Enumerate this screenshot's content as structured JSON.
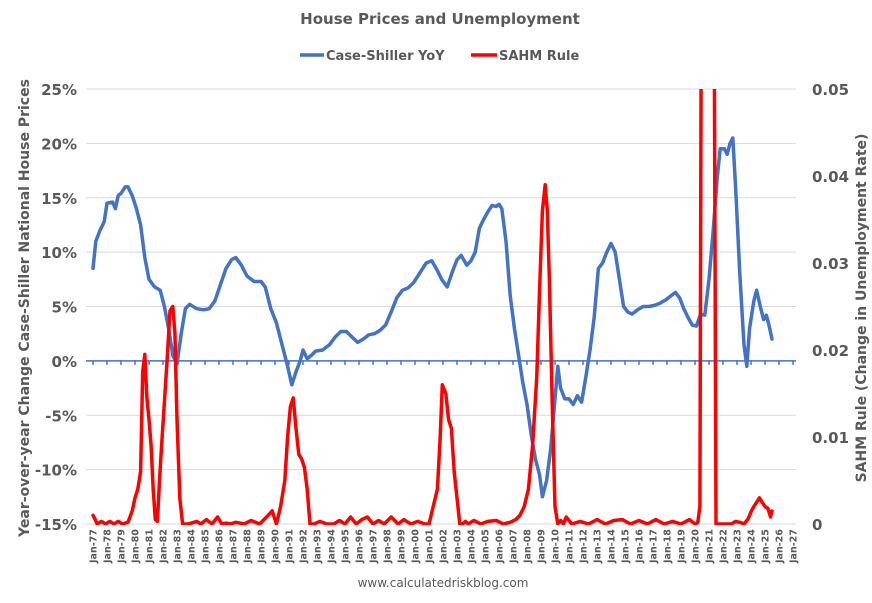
{
  "chart_data": {
    "type": "line",
    "title": "House Prices and Unemployment",
    "legend": [
      {
        "name": "Case-Shiller YoY",
        "color": "#4472C4",
        "axis": "left"
      },
      {
        "name": "SAHM Rule",
        "color": "#FF0000",
        "axis": "right"
      }
    ],
    "legend_position": "top",
    "ylabel_left": "Year-over-year Change Case-Shiller National House Prices",
    "ylabel_right": "SAHM Rule (Change in Unemployment Rate)",
    "ylim_left": [
      -0.15,
      0.25
    ],
    "ylim_right": [
      0,
      0.05
    ],
    "yticks_left": [
      "25%",
      "20%",
      "15%",
      "10%",
      "5%",
      "0%",
      "-5%",
      "-10%",
      "-15%"
    ],
    "yticks_right": [
      "0.05",
      "0.04",
      "0.03",
      "0.02",
      "0.01",
      "0"
    ],
    "xticks": [
      "Jan-77",
      "Jan-78",
      "Jan-79",
      "Jan-80",
      "Jan-81",
      "Jan-82",
      "Jan-83",
      "Jan-84",
      "Jan-85",
      "Jan-86",
      "Jan-87",
      "Jan-88",
      "Jan-89",
      "Jan-90",
      "Jan-91",
      "Jan-92",
      "Jan-93",
      "Jan-94",
      "Jan-95",
      "Jan-96",
      "Jan-97",
      "Jan-98",
      "Jan-99",
      "Jan-00",
      "Jan-01",
      "Jan-02",
      "Jan-03",
      "Jan-04",
      "Jan-05",
      "Jan-06",
      "Jan-07",
      "Jan-08",
      "Jan-09",
      "Jan-10",
      "Jan-11",
      "Jan-12",
      "Jan-13",
      "Jan-14",
      "Jan-15",
      "Jan-16",
      "Jan-17",
      "Jan-18",
      "Jan-19",
      "Jan-20",
      "Jan-21",
      "Jan-22",
      "Jan-23",
      "Jan-24",
      "Jan-25",
      "Jan-26",
      "Jan-27"
    ],
    "grid": true,
    "source": "www.calculatedriskblog.com",
    "series": [
      {
        "name": "Case-Shiller YoY",
        "unit": "percent",
        "x": [
          1977.0,
          1977.2,
          1977.5,
          1977.8,
          1978.0,
          1978.4,
          1978.6,
          1978.8,
          1979.0,
          1979.3,
          1979.5,
          1979.8,
          1980.1,
          1980.4,
          1980.7,
          1981.0,
          1981.4,
          1981.8,
          1982.1,
          1982.4,
          1982.7,
          1983.0,
          1983.3,
          1983.6,
          1983.9,
          1984.4,
          1984.9,
          1985.3,
          1985.7,
          1986.1,
          1986.5,
          1986.9,
          1987.2,
          1987.6,
          1988.0,
          1988.5,
          1989.0,
          1989.3,
          1989.7,
          1990.1,
          1990.5,
          1990.9,
          1991.2,
          1991.5,
          1991.8,
          1992.0,
          1992.3,
          1992.6,
          1992.9,
          1993.4,
          1993.9,
          1994.3,
          1994.7,
          1995.1,
          1995.5,
          1995.9,
          1996.3,
          1996.7,
          1997.1,
          1997.5,
          1997.9,
          1998.3,
          1998.7,
          1999.1,
          1999.5,
          1999.9,
          2000.3,
          2000.8,
          2001.2,
          2001.6,
          2001.9,
          2002.3,
          2002.7,
          2003.0,
          2003.3,
          2003.7,
          2004.0,
          2004.3,
          2004.6,
          2004.9,
          2005.2,
          2005.5,
          2005.8,
          2006.0,
          2006.2,
          2006.5,
          2006.8,
          2007.1,
          2007.4,
          2007.7,
          2008.0,
          2008.3,
          2008.6,
          2008.9,
          2009.1,
          2009.4,
          2009.7,
          2010.0,
          2010.2,
          2010.4,
          2010.7,
          2011.0,
          2011.3,
          2011.6,
          2011.9,
          2012.2,
          2012.5,
          2012.8,
          2013.1,
          2013.4,
          2013.7,
          2014.0,
          2014.3,
          2014.6,
          2014.9,
          2015.2,
          2015.5,
          2015.9,
          2016.3,
          2016.7,
          2017.1,
          2017.5,
          2017.9,
          2018.3,
          2018.6,
          2018.9,
          2019.2,
          2019.5,
          2019.8,
          2020.1,
          2020.4,
          2020.7,
          2021.0,
          2021.3,
          2021.6,
          2021.8,
          2022.1,
          2022.3,
          2022.5,
          2022.7,
          2022.9,
          2023.2,
          2023.5,
          2023.7,
          2023.9,
          2024.2,
          2024.4,
          2024.7,
          2024.9,
          2025.1,
          2025.3,
          2025.5
        ],
        "values": [
          8.5,
          11.0,
          12.0,
          12.8,
          14.5,
          14.6,
          14.0,
          15.2,
          15.4,
          16.0,
          16.0,
          15.2,
          14.0,
          12.5,
          9.5,
          7.5,
          6.8,
          6.5,
          5.0,
          3.0,
          0.5,
          -0.3,
          2.5,
          4.8,
          5.2,
          4.8,
          4.7,
          4.8,
          5.5,
          7.0,
          8.5,
          9.3,
          9.5,
          8.8,
          7.8,
          7.3,
          7.3,
          6.8,
          4.8,
          3.5,
          1.5,
          -0.5,
          -2.2,
          -1.0,
          0.0,
          1.0,
          0.2,
          0.5,
          0.9,
          1.0,
          1.5,
          2.2,
          2.7,
          2.7,
          2.2,
          1.7,
          2.0,
          2.4,
          2.5,
          2.8,
          3.3,
          4.5,
          5.8,
          6.5,
          6.7,
          7.2,
          8.0,
          9.0,
          9.2,
          8.3,
          7.5,
          6.8,
          8.3,
          9.3,
          9.7,
          8.8,
          9.2,
          10.0,
          12.2,
          13.0,
          13.7,
          14.3,
          14.2,
          14.4,
          14.0,
          11.0,
          6.0,
          3.0,
          0.5,
          -2.0,
          -4.0,
          -6.8,
          -9.0,
          -10.5,
          -12.5,
          -11.0,
          -8.0,
          -3.5,
          -0.5,
          -2.5,
          -3.5,
          -3.5,
          -4.0,
          -3.2,
          -3.8,
          -1.5,
          1.0,
          4.0,
          8.5,
          9.0,
          10.0,
          10.8,
          10.0,
          7.5,
          5.0,
          4.5,
          4.3,
          4.7,
          5.0,
          5.0,
          5.1,
          5.3,
          5.6,
          6.0,
          6.3,
          5.8,
          4.8,
          4.0,
          3.3,
          3.2,
          4.3,
          4.2,
          7.5,
          12.0,
          17.0,
          19.5,
          19.5,
          19.0,
          20.0,
          20.5,
          16.0,
          8.0,
          1.5,
          -0.5,
          3.0,
          5.5,
          6.5,
          4.8,
          3.8,
          4.2,
          3.2,
          2.0
        ]
      },
      {
        "name": "SAHM Rule",
        "unit": "change in unemployment rate",
        "x": [
          1977.0,
          1977.1,
          1977.3,
          1977.6,
          1977.9,
          1978.2,
          1978.5,
          1978.8,
          1979.1,
          1979.5,
          1979.8,
          1980.0,
          1980.2,
          1980.4,
          1980.55,
          1980.7,
          1980.85,
          1981.0,
          1981.15,
          1981.3,
          1981.45,
          1981.6,
          1981.75,
          1981.9,
          1982.1,
          1982.3,
          1982.5,
          1982.7,
          1982.85,
          1983.0,
          1983.2,
          1983.4,
          1983.6,
          1983.8,
          1984.4,
          1984.7,
          1985.1,
          1985.5,
          1985.9,
          1986.2,
          1986.5,
          1986.8,
          1987.2,
          1987.8,
          1988.3,
          1988.9,
          1989.4,
          1989.8,
          1990.1,
          1990.4,
          1990.7,
          1990.9,
          1991.1,
          1991.3,
          1991.5,
          1991.7,
          1991.9,
          1992.1,
          1992.3,
          1992.5,
          1992.8,
          1993.2,
          1993.7,
          1994.2,
          1994.6,
          1995.0,
          1995.4,
          1995.8,
          1996.2,
          1996.6,
          1997.0,
          1997.4,
          1997.8,
          1998.3,
          1998.8,
          1999.2,
          1999.7,
          2000.2,
          2000.7,
          2001.0,
          2001.3,
          2001.6,
          2001.8,
          2001.95,
          2002.2,
          2002.4,
          2002.6,
          2002.8,
          2003.0,
          2003.2,
          2003.4,
          2003.6,
          2003.8,
          2004.2,
          2004.7,
          2005.2,
          2005.8,
          2006.3,
          2006.8,
          2007.2,
          2007.5,
          2007.8,
          2008.1,
          2008.4,
          2008.7,
          2008.9,
          2009.1,
          2009.3,
          2009.45,
          2009.6,
          2009.8,
          2010.0,
          2010.2,
          2010.4,
          2010.6,
          2010.8,
          2011.2,
          2011.8,
          2012.4,
          2013.0,
          2013.6,
          2014.2,
          2014.8,
          2015.4,
          2016.0,
          2016.6,
          2017.2,
          2017.8,
          2018.4,
          2019.0,
          2019.6,
          2020.0,
          2020.2,
          2020.35,
          2020.5,
          2020.65,
          2020.8,
          2021.0,
          2021.2,
          2021.3,
          2021.5,
          2021.8,
          2022.2,
          2022.6,
          2022.9,
          2023.2,
          2023.5,
          2023.8,
          2024.0,
          2024.2,
          2024.4,
          2024.6,
          2024.8,
          2025.0,
          2025.2,
          2025.4,
          2025.5
        ],
        "values": [
          0.001,
          0.0007,
          0.0,
          0.0003,
          0.0,
          0.0003,
          0.0,
          0.0003,
          0.0,
          0.0002,
          0.0015,
          0.003,
          0.004,
          0.006,
          0.0175,
          0.0195,
          0.0145,
          0.012,
          0.009,
          0.004,
          0.0005,
          0.0003,
          0.005,
          0.009,
          0.014,
          0.019,
          0.0245,
          0.025,
          0.022,
          0.012,
          0.003,
          0.0,
          0.0,
          0.0,
          0.0003,
          0.0,
          0.0005,
          0.0,
          0.0008,
          0.0,
          0.0001,
          0.0,
          0.0002,
          0.0,
          0.0004,
          0.0,
          0.0008,
          0.0015,
          0.0,
          0.002,
          0.005,
          0.01,
          0.0135,
          0.0145,
          0.011,
          0.008,
          0.0075,
          0.0065,
          0.004,
          0.0,
          0.0,
          0.0003,
          0.0,
          0.0,
          0.0004,
          0.0,
          0.0008,
          0.0,
          0.0005,
          0.0008,
          0.0,
          0.0004,
          0.0,
          0.0008,
          0.0,
          0.0005,
          0.0,
          0.0003,
          0.0,
          0.0,
          0.002,
          0.004,
          0.01,
          0.016,
          0.015,
          0.012,
          0.011,
          0.006,
          0.003,
          0.0,
          0.0,
          0.0003,
          0.0,
          0.0004,
          0.0,
          0.0003,
          0.0004,
          0.0,
          0.0002,
          0.0005,
          0.001,
          0.002,
          0.004,
          0.009,
          0.017,
          0.027,
          0.036,
          0.039,
          0.036,
          0.028,
          0.014,
          0.002,
          0.0,
          0.0004,
          0.0,
          0.0008,
          0.0,
          0.0003,
          0.0,
          0.0005,
          0.0,
          0.0004,
          0.0005,
          0.0,
          0.0004,
          0.0,
          0.0005,
          0.0,
          0.0003,
          0.0,
          0.0005,
          0.0,
          0.0002,
          0.002,
          0.09,
          0.09,
          0.09,
          0.09,
          0.09,
          0.09,
          0.0,
          0.0,
          0.0,
          0.0,
          0.0003,
          0.0002,
          0.0,
          0.0006,
          0.0014,
          0.002,
          0.0025,
          0.003,
          0.0025,
          0.002,
          0.0018,
          0.0008,
          0.0015
        ]
      }
    ]
  },
  "source_label": "www.calculatedriskblog.com"
}
